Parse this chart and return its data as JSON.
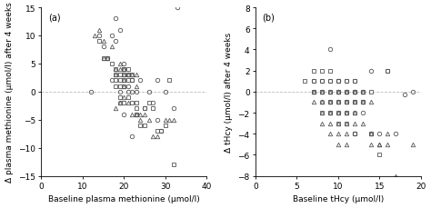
{
  "panel_a": {
    "label": "(a)",
    "xlabel": "Baseline plasma methionine (μmol/l)",
    "ylabel": "Δ plasma methionine (μmol/l) after 4 weeks",
    "xlim": [
      0,
      40
    ],
    "ylim": [
      -15,
      15
    ],
    "xticks": [
      0,
      10,
      20,
      30,
      40
    ],
    "yticks": [
      -15,
      -10,
      -5,
      0,
      5,
      10,
      15
    ],
    "circles_x": [
      12,
      14,
      15,
      16,
      17,
      17,
      18,
      18,
      19,
      19,
      19,
      20,
      20,
      20,
      21,
      21,
      21,
      22,
      22,
      22,
      23,
      23,
      24,
      25,
      26,
      27,
      28,
      28,
      29,
      30,
      32,
      33
    ],
    "circles_y": [
      0,
      10,
      8,
      6,
      10,
      2,
      13,
      9,
      11,
      0,
      -2,
      5,
      4,
      -4,
      3,
      1,
      0,
      2,
      0,
      -8,
      0,
      -4,
      2,
      -3,
      0,
      -2,
      -5,
      2,
      -7,
      0,
      -3,
      15
    ],
    "triangles_x": [
      13,
      14,
      15,
      15,
      16,
      17,
      18,
      18,
      18,
      19,
      19,
      19,
      20,
      20,
      20,
      20,
      20,
      21,
      21,
      22,
      22,
      23,
      23,
      23,
      24,
      24,
      25,
      26,
      27,
      28,
      30,
      31,
      32
    ],
    "triangles_y": [
      10,
      11,
      6,
      9,
      6,
      8,
      4,
      3,
      -3,
      5,
      4,
      -2,
      4,
      3,
      2,
      1,
      -1,
      3,
      -2,
      3,
      -4,
      3,
      1,
      -4,
      -4,
      -5,
      -4,
      -5,
      -8,
      -8,
      -5,
      -5,
      -5
    ],
    "squares_x": [
      14,
      15,
      16,
      17,
      18,
      18,
      18,
      18,
      19,
      19,
      19,
      19,
      20,
      20,
      20,
      20,
      20,
      21,
      21,
      21,
      21,
      22,
      22,
      22,
      23,
      23,
      23,
      24,
      25,
      25,
      26,
      27,
      28,
      29,
      30,
      31,
      32
    ],
    "squares_y": [
      9,
      6,
      6,
      5,
      4,
      3,
      2,
      1,
      3,
      2,
      1,
      -1,
      4,
      3,
      2,
      1,
      -2,
      4,
      3,
      2,
      -1,
      3,
      2,
      -2,
      -2,
      -3,
      -4,
      -6,
      -3,
      -6,
      -2,
      -3,
      -7,
      -7,
      -6,
      2,
      -13
    ]
  },
  "panel_b": {
    "label": "(b)",
    "xlabel": "Baseline tHcy (μmol/l)",
    "ylabel": "Δ tHcy (μmol/l) after 4 weeks",
    "xlim": [
      0,
      20
    ],
    "ylim": [
      -8,
      8
    ],
    "xticks": [
      0,
      5,
      10,
      15,
      20
    ],
    "yticks": [
      -8,
      -6,
      -4,
      -2,
      0,
      2,
      4,
      6,
      8
    ],
    "circles_x": [
      7,
      7,
      8,
      8,
      8,
      9,
      9,
      9,
      9,
      9,
      10,
      10,
      10,
      10,
      10,
      10,
      11,
      11,
      11,
      11,
      11,
      12,
      12,
      12,
      12,
      12,
      12,
      12,
      13,
      13,
      13,
      14,
      14,
      15,
      16,
      17,
      18,
      19
    ],
    "circles_y": [
      1,
      0,
      1,
      0,
      -1,
      1,
      0,
      -1,
      4,
      -2,
      1,
      0,
      -1,
      -2,
      0,
      1,
      1,
      0,
      -1,
      -2,
      0,
      1,
      0,
      -1,
      -2,
      -4,
      0,
      -4,
      0,
      -1,
      -2,
      -4,
      2,
      -4,
      2,
      -4,
      -0.3,
      0
    ],
    "triangles_x": [
      7,
      7,
      8,
      8,
      8,
      8,
      9,
      9,
      9,
      9,
      9,
      10,
      10,
      10,
      10,
      10,
      10,
      11,
      11,
      11,
      11,
      11,
      11,
      12,
      12,
      12,
      12,
      13,
      13,
      13,
      14,
      14,
      14,
      15,
      15,
      16,
      16,
      17,
      19
    ],
    "triangles_y": [
      0,
      -1,
      -1,
      -2,
      -3,
      0,
      0,
      -1,
      -2,
      -3,
      -4,
      0,
      -1,
      -2,
      -3,
      -4,
      -5,
      0,
      -1,
      -2,
      -3,
      -4,
      -5,
      0,
      -1,
      -2,
      -3,
      0,
      -1,
      -3,
      -1,
      -4,
      -5,
      -5,
      -5,
      -5,
      -4,
      -8,
      -5
    ],
    "squares_x": [
      6,
      7,
      7,
      7,
      8,
      8,
      8,
      8,
      9,
      9,
      9,
      9,
      9,
      10,
      10,
      10,
      10,
      10,
      11,
      11,
      11,
      11,
      11,
      12,
      12,
      12,
      12,
      13,
      13,
      14,
      14,
      15,
      16
    ],
    "squares_y": [
      1,
      2,
      1,
      0,
      2,
      1,
      0,
      -2,
      2,
      1,
      0,
      -1,
      -2,
      1,
      0,
      -1,
      -2,
      -3,
      1,
      0,
      -1,
      -2,
      -3,
      1,
      0,
      -1,
      -4,
      0,
      -1,
      -4,
      0,
      -6,
      2
    ]
  },
  "line_color": "#bbbbbb",
  "background_color": "white",
  "font_size": 6.5,
  "marker_size": 3.2,
  "marker_edge_width": 0.6
}
